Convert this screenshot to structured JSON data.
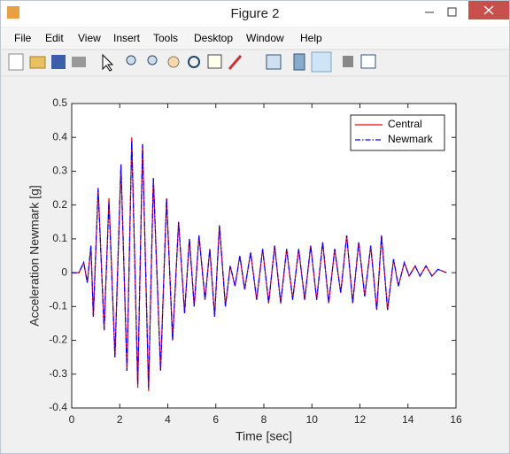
{
  "window": {
    "title": "Figure 2",
    "menu": [
      "File",
      "Edit",
      "View",
      "Insert",
      "Tools",
      "Desktop",
      "Window",
      "Help"
    ]
  },
  "chart_data": {
    "type": "line",
    "xlabel": "Time [sec]",
    "ylabel": "Acceleration Newmark [g]",
    "x": [
      0,
      0.3,
      0.5,
      0.65,
      0.8,
      0.9,
      1.1,
      1.35,
      1.55,
      1.8,
      2.05,
      2.3,
      2.5,
      2.75,
      2.95,
      3.2,
      3.4,
      3.7,
      3.95,
      4.2,
      4.45,
      4.7,
      4.9,
      5.1,
      5.3,
      5.55,
      5.75,
      5.95,
      6.15,
      6.4,
      6.6,
      6.8,
      7.0,
      7.2,
      7.45,
      7.7,
      7.95,
      8.2,
      8.45,
      8.7,
      8.95,
      9.2,
      9.45,
      9.7,
      9.95,
      10.2,
      10.45,
      10.7,
      10.95,
      11.2,
      11.45,
      11.7,
      11.95,
      12.2,
      12.45,
      12.7,
      12.9,
      13.15,
      13.4,
      13.6,
      13.85,
      14.05,
      14.3,
      14.5,
      14.75,
      15.0,
      15.25,
      15.6
    ],
    "series": [
      {
        "name": "Central",
        "color": "#ff0000",
        "linestyle": "solid",
        "values": [
          0,
          0,
          0.03,
          -0.03,
          0.08,
          -0.13,
          0.25,
          -0.17,
          0.22,
          -0.25,
          0.32,
          -0.29,
          0.4,
          -0.34,
          0.38,
          -0.35,
          0.28,
          -0.29,
          0.22,
          -0.2,
          0.15,
          -0.12,
          0.1,
          -0.1,
          0.11,
          -0.08,
          0.07,
          -0.13,
          0.14,
          -0.1,
          0.02,
          -0.04,
          0.05,
          -0.05,
          0.06,
          -0.08,
          0.07,
          -0.09,
          0.08,
          -0.09,
          0.07,
          -0.08,
          0.07,
          -0.08,
          0.08,
          -0.08,
          0.09,
          -0.09,
          0.07,
          -0.06,
          0.11,
          -0.09,
          0.09,
          -0.07,
          0.08,
          -0.11,
          0.11,
          -0.11,
          0.04,
          -0.04,
          0.03,
          -0.01,
          0.02,
          -0.01,
          0.02,
          -0.01,
          0.01,
          0
        ]
      },
      {
        "name": "Newmark",
        "color": "#0000ff",
        "linestyle": "dashdot",
        "values": [
          0,
          0,
          0.03,
          -0.03,
          0.08,
          -0.13,
          0.25,
          -0.17,
          0.21,
          -0.25,
          0.32,
          -0.29,
          0.39,
          -0.33,
          0.38,
          -0.34,
          0.28,
          -0.29,
          0.22,
          -0.2,
          0.15,
          -0.12,
          0.1,
          -0.1,
          0.11,
          -0.08,
          0.07,
          -0.13,
          0.14,
          -0.1,
          0.02,
          -0.04,
          0.05,
          -0.05,
          0.06,
          -0.08,
          0.07,
          -0.09,
          0.08,
          -0.09,
          0.07,
          -0.08,
          0.07,
          -0.08,
          0.08,
          -0.08,
          0.09,
          -0.09,
          0.07,
          -0.06,
          0.11,
          -0.09,
          0.09,
          -0.07,
          0.08,
          -0.11,
          0.11,
          -0.11,
          0.04,
          -0.04,
          0.03,
          -0.01,
          0.02,
          -0.01,
          0.02,
          -0.01,
          0.01,
          0
        ]
      }
    ],
    "xlim": [
      0,
      16
    ],
    "xticks": [
      0,
      2,
      4,
      6,
      8,
      10,
      12,
      14,
      16
    ],
    "ylim": [
      -0.4,
      0.5
    ],
    "yticks": [
      -0.4,
      -0.3,
      -0.2,
      -0.1,
      0,
      0.1,
      0.2,
      0.3,
      0.4,
      0.5
    ],
    "grid": false,
    "legend": "northeast"
  }
}
